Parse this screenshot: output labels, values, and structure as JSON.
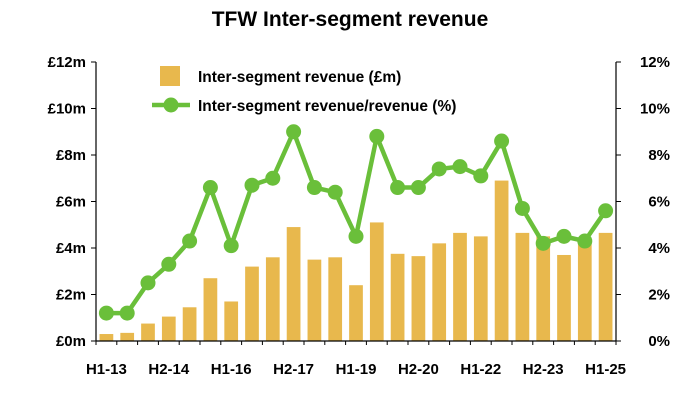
{
  "chart_data": {
    "type": "bar",
    "title": "TFW Inter-segment revenue",
    "categories": [
      "H1-13",
      "H2-13",
      "H1-14",
      "H2-14",
      "H1-15",
      "H2-15",
      "H1-16",
      "H2-16",
      "H1-17",
      "H2-17",
      "H1-18",
      "H2-18",
      "H1-19",
      "H2-19",
      "H1-20",
      "H2-20",
      "H1-21",
      "H2-21",
      "H1-22",
      "H2-22",
      "H1-23",
      "H2-23",
      "H1-24",
      "H2-24",
      "H1-25"
    ],
    "x_tick_labels": [
      "H1-13",
      "H2-14",
      "H1-16",
      "H2-17",
      "H1-19",
      "H2-20",
      "H1-22",
      "H2-23",
      "H1-25"
    ],
    "series": [
      {
        "name": "Inter-segment revenue (£m)",
        "kind": "bar",
        "axis": "left",
        "color": "#e8b84d",
        "values": [
          0.3,
          0.35,
          0.75,
          1.05,
          1.45,
          2.7,
          1.7,
          3.2,
          3.6,
          4.9,
          3.5,
          3.6,
          2.4,
          5.1,
          3.75,
          3.65,
          4.2,
          4.65,
          4.5,
          6.9,
          4.65,
          4.5,
          3.7,
          4.3,
          4.65
        ]
      },
      {
        "name": "Inter-segment revenue/revenue (%)",
        "kind": "line",
        "axis": "right",
        "color": "#6abf3a",
        "values": [
          1.2,
          1.2,
          2.5,
          3.3,
          4.3,
          6.6,
          4.1,
          6.7,
          7.0,
          9.0,
          6.6,
          6.4,
          4.5,
          8.8,
          6.6,
          6.6,
          7.4,
          7.5,
          7.1,
          8.6,
          5.7,
          4.2,
          4.5,
          4.3,
          5.6
        ]
      }
    ],
    "y_left": {
      "ylim": [
        0,
        12
      ],
      "ticks": [
        "£0m",
        "£2m",
        "£4m",
        "£6m",
        "£8m",
        "£10m",
        "£12m"
      ]
    },
    "y_right": {
      "ylim": [
        0,
        12
      ],
      "ticks": [
        "0%",
        "2%",
        "4%",
        "6%",
        "8%",
        "10%",
        "12%"
      ]
    },
    "legend": "top-left",
    "grid": false
  }
}
